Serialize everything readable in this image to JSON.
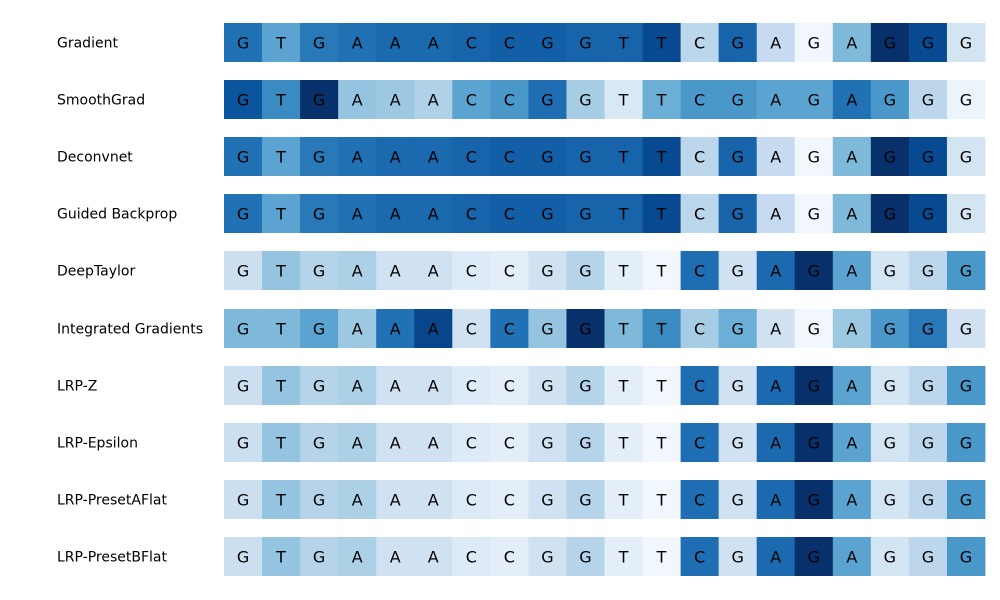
{
  "chart_data": {
    "type": "heatmap",
    "sequence": [
      "G",
      "T",
      "G",
      "A",
      "A",
      "A",
      "C",
      "C",
      "G",
      "G",
      "T",
      "T",
      "C",
      "G",
      "A",
      "G",
      "A",
      "G",
      "G",
      "G"
    ],
    "colormap": "Blues",
    "grid": false,
    "rows": [
      {
        "name": "Gradient",
        "values": [
          0.75,
          0.55,
          0.72,
          0.75,
          0.78,
          0.78,
          0.8,
          0.82,
          0.82,
          0.8,
          0.8,
          0.9,
          0.28,
          0.8,
          0.25,
          0.03,
          0.45,
          1.0,
          0.9,
          0.18
        ]
      },
      {
        "name": "SmoothGrad",
        "values": [
          0.86,
          0.65,
          1.0,
          0.4,
          0.38,
          0.32,
          0.55,
          0.6,
          0.76,
          0.35,
          0.15,
          0.5,
          0.6,
          0.6,
          0.55,
          0.55,
          0.75,
          0.6,
          0.28,
          0.05
        ]
      },
      {
        "name": "Deconvnet",
        "values": [
          0.75,
          0.55,
          0.72,
          0.75,
          0.78,
          0.78,
          0.8,
          0.82,
          0.82,
          0.8,
          0.8,
          0.9,
          0.28,
          0.8,
          0.25,
          0.03,
          0.45,
          1.0,
          0.9,
          0.18
        ]
      },
      {
        "name": "Guided Backprop",
        "values": [
          0.75,
          0.55,
          0.72,
          0.75,
          0.78,
          0.78,
          0.8,
          0.82,
          0.82,
          0.8,
          0.8,
          0.9,
          0.28,
          0.8,
          0.25,
          0.03,
          0.45,
          1.0,
          0.9,
          0.18
        ]
      },
      {
        "name": "DeepTaylor",
        "values": [
          0.22,
          0.4,
          0.3,
          0.33,
          0.2,
          0.2,
          0.13,
          0.1,
          0.2,
          0.3,
          0.1,
          0.03,
          0.76,
          0.2,
          0.78,
          1.0,
          0.55,
          0.18,
          0.28,
          0.6
        ]
      },
      {
        "name": "Integrated Gradients",
        "values": [
          0.45,
          0.45,
          0.55,
          0.38,
          0.75,
          0.92,
          0.2,
          0.75,
          0.4,
          1.0,
          0.45,
          0.65,
          0.35,
          0.5,
          0.2,
          0.03,
          0.38,
          0.6,
          0.72,
          0.2
        ]
      },
      {
        "name": "LRP-Z",
        "values": [
          0.22,
          0.4,
          0.3,
          0.33,
          0.2,
          0.2,
          0.13,
          0.1,
          0.2,
          0.3,
          0.1,
          0.03,
          0.76,
          0.2,
          0.78,
          1.0,
          0.55,
          0.18,
          0.28,
          0.6
        ]
      },
      {
        "name": "LRP-Epsilon",
        "values": [
          0.22,
          0.4,
          0.3,
          0.33,
          0.2,
          0.2,
          0.13,
          0.1,
          0.2,
          0.3,
          0.1,
          0.03,
          0.76,
          0.2,
          0.78,
          1.0,
          0.55,
          0.18,
          0.28,
          0.6
        ]
      },
      {
        "name": "LRP-PresetAFlat",
        "values": [
          0.22,
          0.4,
          0.3,
          0.33,
          0.2,
          0.2,
          0.13,
          0.1,
          0.2,
          0.3,
          0.1,
          0.03,
          0.76,
          0.2,
          0.78,
          1.0,
          0.55,
          0.18,
          0.28,
          0.6
        ]
      },
      {
        "name": "LRP-PresetBFlat",
        "values": [
          0.22,
          0.4,
          0.3,
          0.33,
          0.2,
          0.2,
          0.13,
          0.1,
          0.2,
          0.3,
          0.1,
          0.03,
          0.76,
          0.2,
          0.78,
          1.0,
          0.55,
          0.18,
          0.28,
          0.6
        ]
      }
    ]
  }
}
